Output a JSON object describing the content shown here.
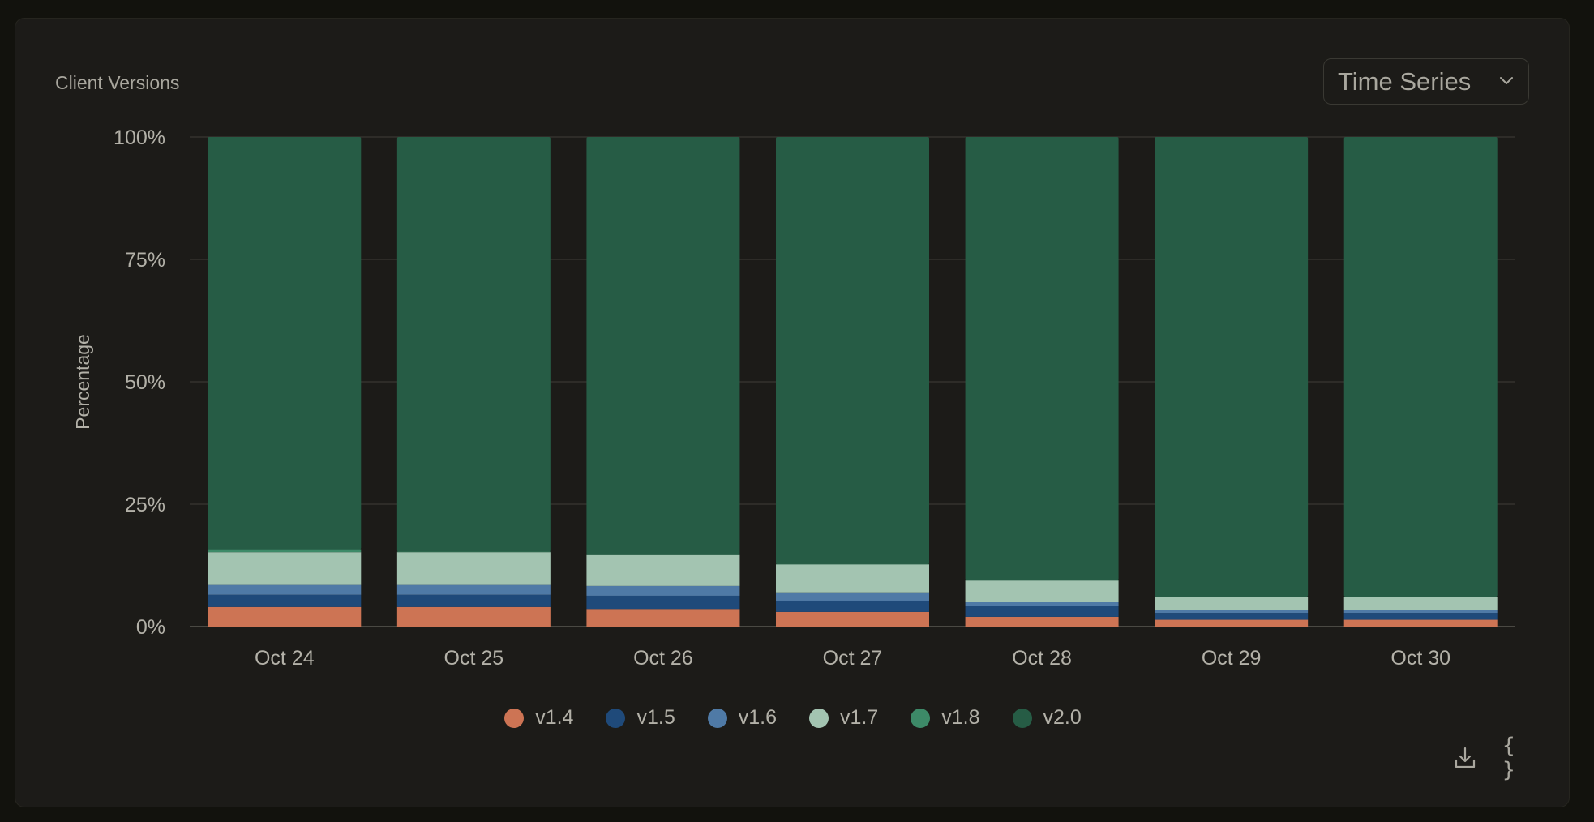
{
  "card": {
    "title": "Client Versions"
  },
  "mode_select": {
    "selected": "Time Series",
    "icon": "chevron-down-icon"
  },
  "toolbar": {
    "download_icon": "download-icon",
    "json_icon": "code-braces-icon",
    "json_glyph": "{ }"
  },
  "colors": {
    "background": "#1c1b18",
    "grid": "#34332d",
    "text": "#b3b1a8"
  },
  "chart_data": {
    "type": "bar",
    "stacked": true,
    "ylabel": "Percentage",
    "ylim": [
      0,
      100
    ],
    "yticks": [
      "0%",
      "25%",
      "50%",
      "75%",
      "100%"
    ],
    "ytick_values": [
      0,
      25,
      50,
      75,
      100
    ],
    "grid": true,
    "legend_position": "bottom-center",
    "categories": [
      "Oct 24",
      "Oct 25",
      "Oct 26",
      "Oct 27",
      "Oct 28",
      "Oct 29",
      "Oct 30"
    ],
    "series": [
      {
        "name": "v1.4",
        "color": "#cd7454",
        "values": [
          4.0,
          4.0,
          3.6,
          3.0,
          2.0,
          1.4,
          1.4
        ]
      },
      {
        "name": "v1.5",
        "color": "#1f4a7a",
        "values": [
          2.5,
          2.5,
          2.7,
          2.3,
          2.3,
          1.4,
          1.4
        ]
      },
      {
        "name": "v1.6",
        "color": "#4f7aa6",
        "values": [
          2.0,
          2.0,
          2.0,
          1.7,
          0.8,
          0.6,
          0.6
        ]
      },
      {
        "name": "v1.7",
        "color": "#a3c4b1",
        "values": [
          6.7,
          6.7,
          6.3,
          5.7,
          4.3,
          2.6,
          2.6
        ]
      },
      {
        "name": "v1.8",
        "color": "#3d8a68",
        "values": [
          0.6,
          0.1,
          0.1,
          0.1,
          0.1,
          0.1,
          0.1
        ]
      },
      {
        "name": "v2.0",
        "color": "#265c45",
        "values": [
          84.2,
          84.7,
          85.3,
          87.2,
          90.5,
          93.9,
          93.9
        ]
      }
    ]
  }
}
